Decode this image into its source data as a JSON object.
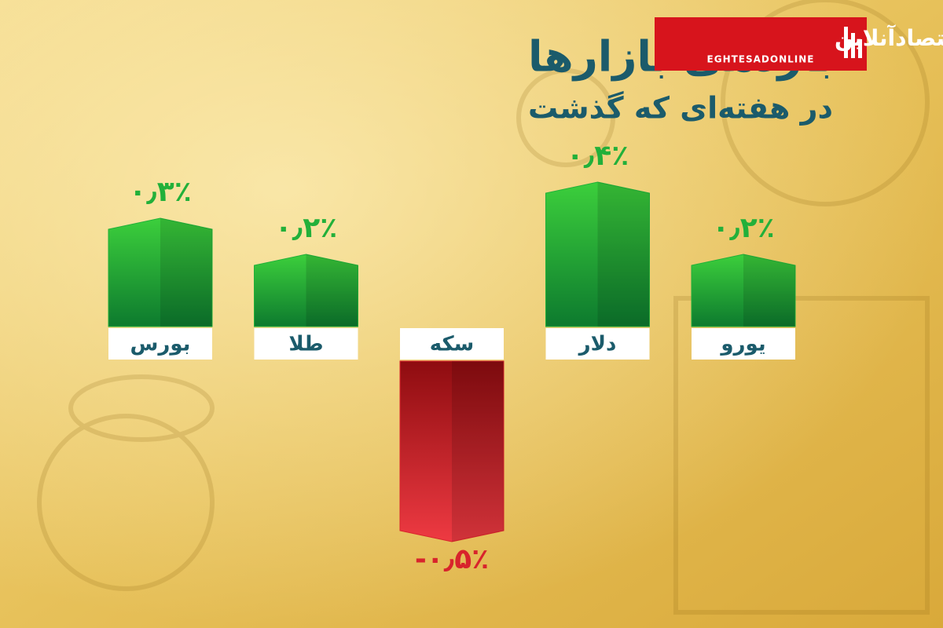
{
  "chart_data": {
    "type": "bar",
    "title": "بازدهی بازارها",
    "subtitle": "در هفته‌ای که گذشت",
    "categories": [
      "بورس",
      "طلا",
      "سکه",
      "دلار",
      "یورو"
    ],
    "values": [
      0.3,
      0.2,
      -0.5,
      0.4,
      0.2
    ],
    "value_labels": [
      "۰٫۳٪",
      "۰٫۲٪",
      "-۰٫۵٪",
      "۰٫۴٪",
      "۰٫۲٪"
    ],
    "color": "#22b03a",
    "negative_color": "#d8242c"
  },
  "logo": {
    "name": "اقتصادآنلاین",
    "latin": "EGHTESADONLINE"
  }
}
